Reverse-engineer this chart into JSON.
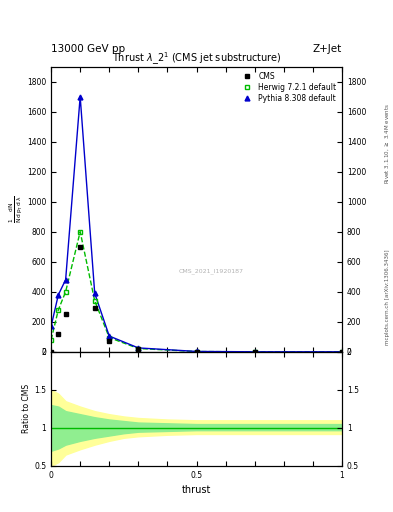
{
  "title": "Thrust $\\lambda\\_2^1$ (CMS jet substructure)",
  "header_left": "13000 GeV pp",
  "header_right": "Z+Jet",
  "right_label_top": "Rivet 3.1.10, $\\geq$ 3.4M events",
  "right_label_bottom": "mcplots.cern.ch [arXiv:1306.3436]",
  "watermark": "CMS_2021_I1920187",
  "ylabel_parts": [
    "1",
    "N",
    "dN",
    "d p_T d lambda"
  ],
  "xlabel": "thrust",
  "ratio_ylabel": "Ratio to CMS",
  "cms_color": "#000000",
  "herwig_color": "#00bb00",
  "pythia_color": "#0000cc",
  "xlim": [
    0.0,
    1.0
  ],
  "ylim_main": [
    0,
    1900
  ],
  "yticks_main": [
    0,
    200,
    400,
    600,
    800,
    1000,
    1200,
    1400,
    1600,
    1800
  ],
  "ratio_ylim": [
    0.5,
    2.0
  ],
  "background_color": "#ffffff",
  "herwig_band_inner": "#90ee90",
  "herwig_band_outer": "#ffff99",
  "x_pts": [
    0.0,
    0.025,
    0.05,
    0.1,
    0.15,
    0.2,
    0.3,
    0.5,
    0.7,
    1.0
  ],
  "cms_vals": [
    0.0,
    120,
    250,
    700,
    290,
    75,
    18,
    1.5,
    0.1,
    0.05
  ],
  "herwig_vals": [
    80,
    280,
    400,
    800,
    340,
    95,
    22,
    2.0,
    0.15,
    0.05
  ],
  "pythia_vals": [
    170,
    380,
    480,
    1700,
    390,
    105,
    26,
    2.5,
    0.15,
    0.05
  ],
  "ratio_x": [
    0.0,
    0.025,
    0.05,
    0.1,
    0.15,
    0.2,
    0.25,
    0.3,
    0.4,
    0.5,
    0.6,
    0.7,
    0.8,
    0.9,
    1.0
  ],
  "ratio_outer_up": [
    1.5,
    1.45,
    1.35,
    1.28,
    1.22,
    1.18,
    1.15,
    1.13,
    1.11,
    1.1,
    1.1,
    1.1,
    1.1,
    1.1,
    1.1
  ],
  "ratio_outer_down": [
    0.5,
    0.55,
    0.65,
    0.72,
    0.78,
    0.83,
    0.87,
    0.89,
    0.91,
    0.92,
    0.92,
    0.92,
    0.92,
    0.92,
    0.92
  ],
  "ratio_inner_up": [
    1.3,
    1.28,
    1.22,
    1.18,
    1.14,
    1.11,
    1.09,
    1.07,
    1.06,
    1.05,
    1.05,
    1.05,
    1.05,
    1.05,
    1.05
  ],
  "ratio_inner_down": [
    0.7,
    0.73,
    0.78,
    0.83,
    0.87,
    0.9,
    0.93,
    0.95,
    0.96,
    0.97,
    0.97,
    0.97,
    0.97,
    0.97,
    0.97
  ]
}
